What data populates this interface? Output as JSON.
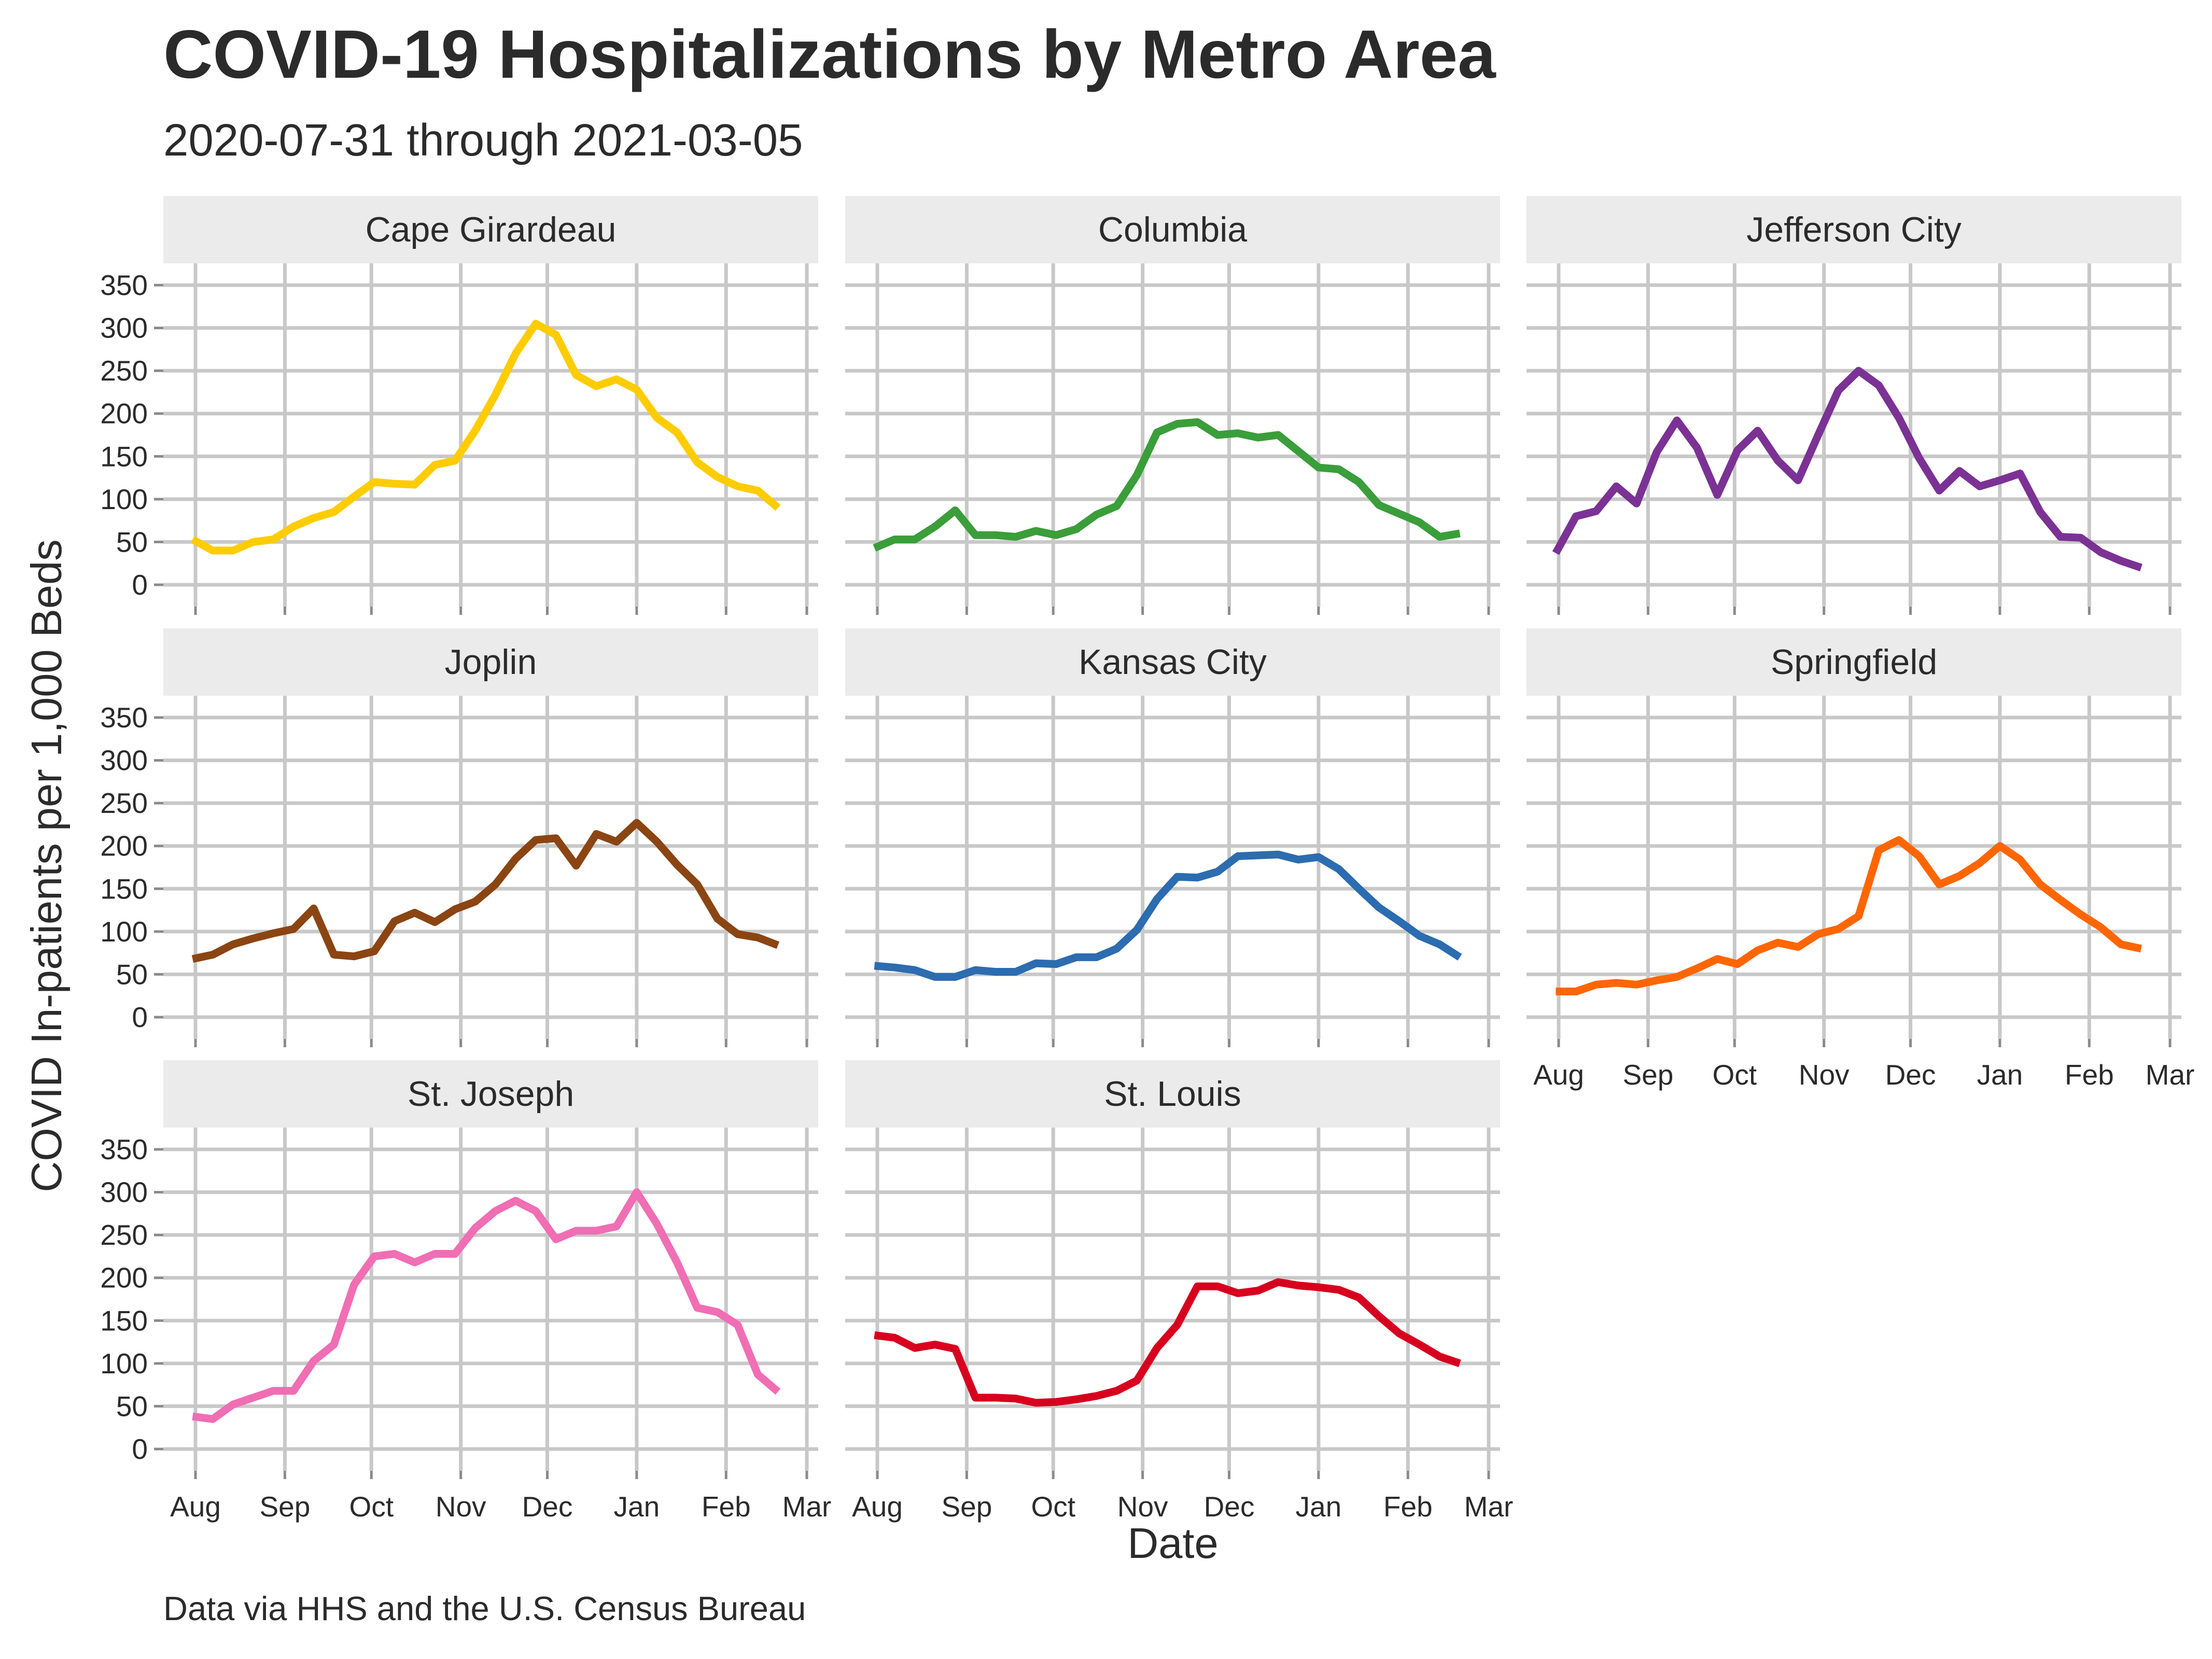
{
  "chart_data": {
    "type": "line",
    "title": "COVID-19 Hospitalizations by Metro Area",
    "subtitle": "2020-07-31 through 2021-03-05",
    "caption": "Data via HHS and the U.S. Census Bureau",
    "xlabel": "Date",
    "ylabel": "COVID In-patients per 1,000 Beds",
    "ylim": [
      0,
      350
    ],
    "y_ticks": [
      "0",
      "50",
      "100",
      "150",
      "200",
      "250",
      "300",
      "350"
    ],
    "x_ticks": [
      "Aug",
      "Sep",
      "Oct",
      "Nov",
      "Dec",
      "Jan",
      "Feb",
      "Mar"
    ],
    "grid": true,
    "legend": "none",
    "x": [
      "2020-07-31",
      "2020-08-07",
      "2020-08-14",
      "2020-08-21",
      "2020-08-28",
      "2020-09-04",
      "2020-09-11",
      "2020-09-18",
      "2020-09-25",
      "2020-10-02",
      "2020-10-09",
      "2020-10-16",
      "2020-10-23",
      "2020-10-30",
      "2020-11-06",
      "2020-11-13",
      "2020-11-20",
      "2020-11-27",
      "2020-12-04",
      "2020-12-11",
      "2020-12-18",
      "2020-12-25",
      "2021-01-01",
      "2021-01-08",
      "2021-01-15",
      "2021-01-22",
      "2021-01-29",
      "2021-02-05",
      "2021-02-12",
      "2021-02-19"
    ],
    "panels": [
      {
        "name": "Cape Girardeau",
        "color": "#FFCC00",
        "values": [
          53,
          40,
          40,
          50,
          53,
          68,
          78,
          85,
          103,
          120,
          118,
          117,
          140,
          145,
          180,
          222,
          270,
          305,
          292,
          245,
          232,
          240,
          228,
          195,
          178,
          143,
          126,
          115,
          110,
          90
        ]
      },
      {
        "name": "Columbia",
        "color": "#3A9E3A",
        "values": [
          43,
          53,
          53,
          68,
          87,
          58,
          58,
          56,
          63,
          58,
          65,
          82,
          92,
          128,
          178,
          188,
          190,
          175,
          177,
          172,
          175,
          156,
          137,
          135,
          120,
          93,
          83,
          73,
          56,
          60
        ]
      },
      {
        "name": "Jefferson City",
        "color": "#7B3294",
        "values": [
          37,
          80,
          86,
          115,
          95,
          155,
          192,
          160,
          105,
          157,
          180,
          145,
          122,
          175,
          227,
          250,
          233,
          195,
          148,
          110,
          133,
          115,
          122,
          130,
          85,
          56,
          55,
          38,
          28,
          20
        ]
      },
      {
        "name": "Joplin",
        "color": "#8B4513",
        "values": [
          68,
          73,
          85,
          92,
          98,
          103,
          127,
          73,
          71,
          77,
          112,
          122,
          111,
          126,
          135,
          155,
          185,
          207,
          209,
          177,
          214,
          205,
          227,
          205,
          178,
          155,
          115,
          97,
          93,
          84
        ]
      },
      {
        "name": "Kansas City",
        "color": "#2C6CB0",
        "values": [
          60,
          58,
          55,
          47,
          47,
          55,
          53,
          53,
          63,
          62,
          70,
          70,
          80,
          102,
          138,
          164,
          163,
          170,
          188,
          189,
          190,
          184,
          187,
          173,
          150,
          128,
          112,
          95,
          85,
          70
        ]
      },
      {
        "name": "Springfield",
        "color": "#FF6600",
        "values": [
          30,
          30,
          38,
          40,
          38,
          43,
          47,
          57,
          68,
          62,
          78,
          87,
          82,
          97,
          103,
          118,
          195,
          207,
          188,
          155,
          165,
          180,
          200,
          184,
          155,
          137,
          120,
          105,
          85,
          80
        ]
      },
      {
        "name": "St. Joseph",
        "color": "#F06EB4",
        "values": [
          38,
          35,
          52,
          60,
          68,
          68,
          103,
          122,
          192,
          225,
          228,
          218,
          228,
          228,
          258,
          278,
          290,
          278,
          245,
          255,
          255,
          260,
          300,
          263,
          218,
          165,
          160,
          145,
          87,
          67
        ]
      },
      {
        "name": "St. Louis",
        "color": "#D7001E",
        "values": [
          133,
          130,
          118,
          122,
          117,
          60,
          60,
          59,
          54,
          55,
          58,
          62,
          68,
          80,
          118,
          145,
          190,
          190,
          182,
          185,
          195,
          191,
          189,
          186,
          177,
          155,
          135,
          122,
          108,
          100
        ]
      }
    ]
  }
}
